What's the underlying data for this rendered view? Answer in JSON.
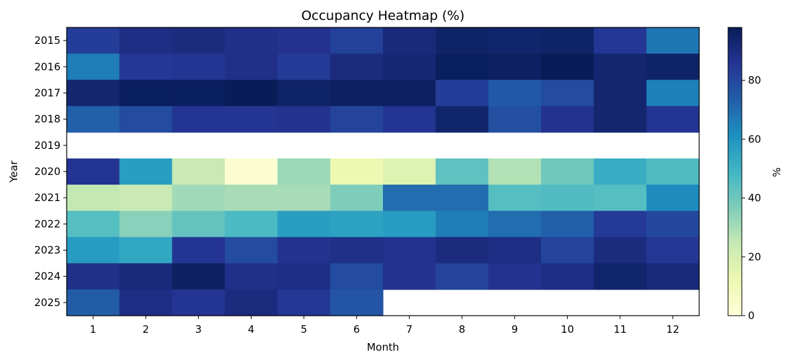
{
  "chart_data": {
    "type": "heatmap",
    "title": "Occupancy Heatmap (%)",
    "xlabel": "Month",
    "ylabel": "Year",
    "x_categories": [
      "1",
      "2",
      "3",
      "4",
      "5",
      "6",
      "7",
      "8",
      "9",
      "10",
      "11",
      "12"
    ],
    "y_categories": [
      "2015",
      "2016",
      "2017",
      "2018",
      "2019",
      "2020",
      "2021",
      "2022",
      "2023",
      "2024",
      "2025"
    ],
    "values": [
      [
        83,
        89,
        90,
        88,
        87,
        82,
        91,
        95,
        94,
        95,
        85,
        68
      ],
      [
        66,
        85,
        86,
        88,
        84,
        90,
        92,
        97,
        96,
        98,
        93,
        95
      ],
      [
        93,
        97,
        97,
        98,
        95,
        96,
        96,
        83,
        75,
        79,
        93,
        65
      ],
      [
        73,
        79,
        86,
        86,
        87,
        81,
        86,
        94,
        78,
        87,
        93,
        86
      ],
      [
        null,
        null,
        null,
        null,
        null,
        null,
        null,
        null,
        null,
        null,
        null,
        null
      ],
      [
        86,
        57,
        24,
        3,
        32,
        12,
        17,
        43,
        28,
        40,
        52,
        46
      ],
      [
        25,
        24,
        31,
        30,
        30,
        37,
        70,
        70,
        45,
        46,
        45,
        63
      ],
      [
        45,
        35,
        42,
        47,
        57,
        56,
        58,
        66,
        70,
        73,
        84,
        80
      ],
      [
        58,
        54,
        86,
        79,
        87,
        88,
        87,
        90,
        89,
        81,
        90,
        85
      ],
      [
        88,
        91,
        96,
        88,
        89,
        79,
        87,
        81,
        87,
        89,
        94,
        91
      ],
      [
        74,
        89,
        86,
        90,
        85,
        76,
        null,
        null,
        null,
        null,
        null,
        null
      ]
    ],
    "colorbar": {
      "label": "%",
      "range": [
        0,
        98
      ],
      "ticks": [
        0,
        20,
        40,
        60,
        80
      ],
      "colormap": "YlGnBu"
    }
  }
}
